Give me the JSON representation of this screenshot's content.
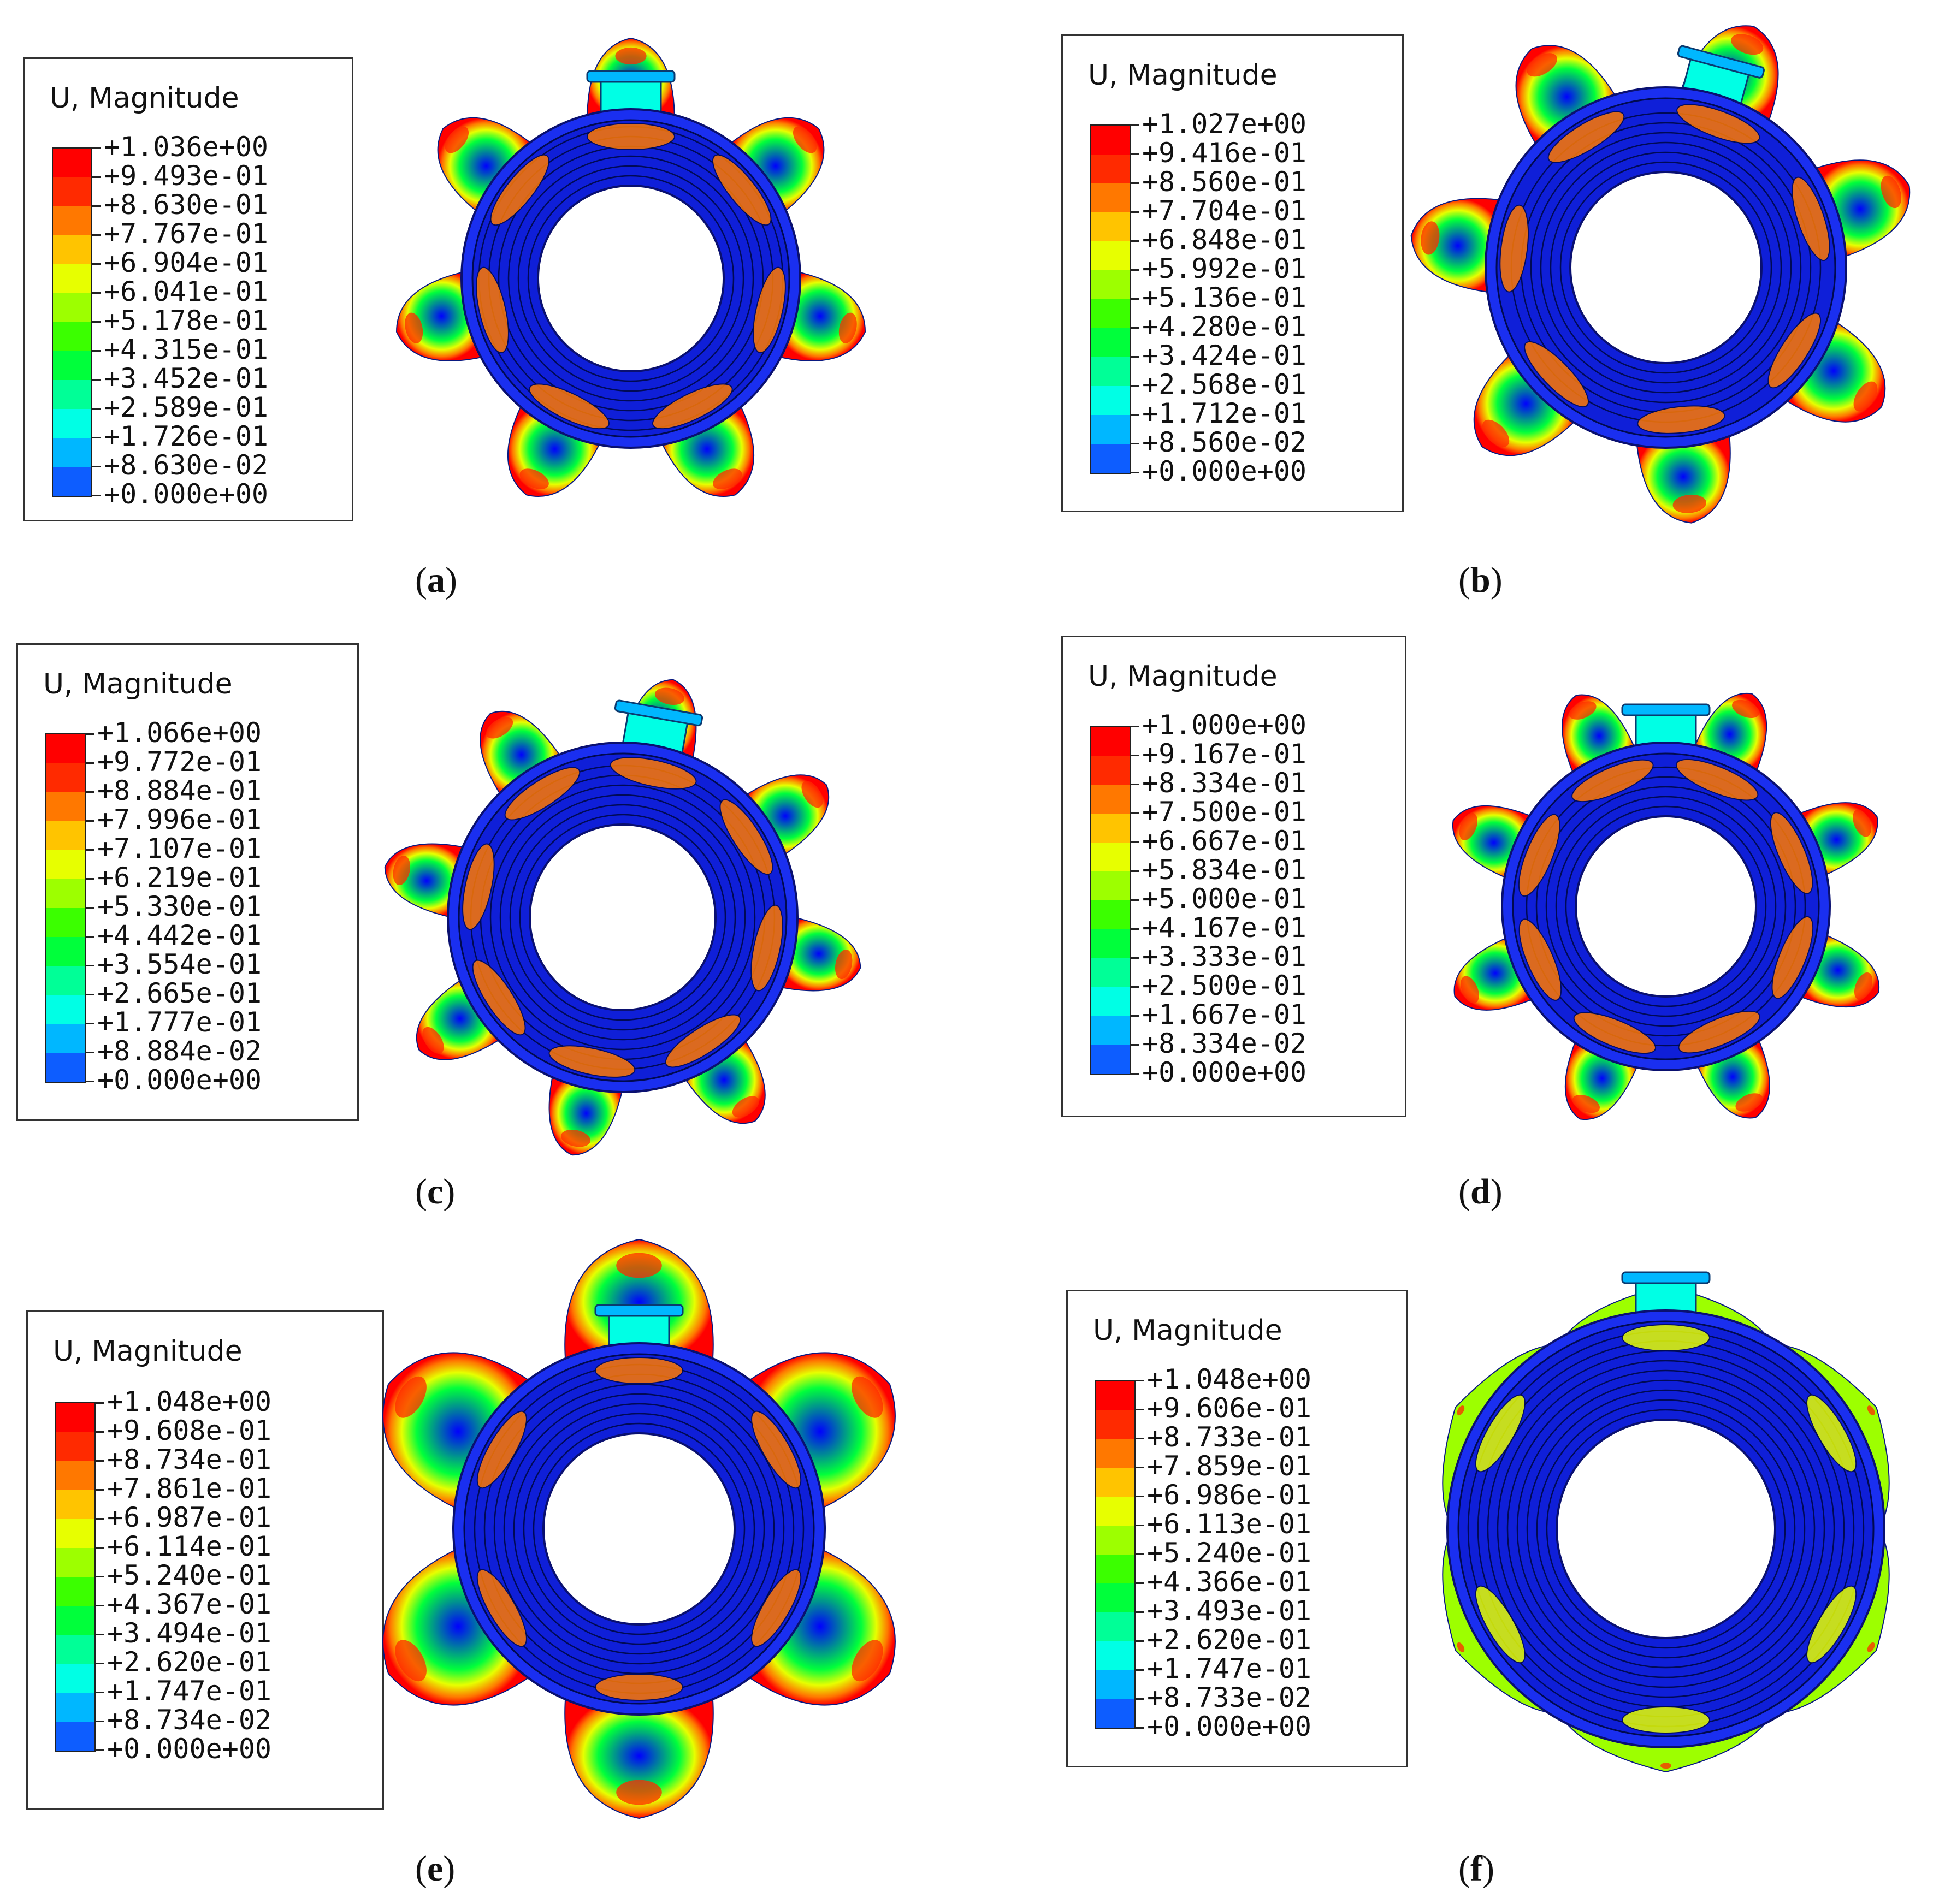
{
  "colors": [
    "#0000ff",
    "#0d5dff",
    "#00b7ff",
    "#00ffe5",
    "#00ff97",
    "#00ff3b",
    "#3bff00",
    "#9dff00",
    "#e7ff00",
    "#ffc400",
    "#ff7800",
    "#ff2a00",
    "#ff0000"
  ],
  "panels": [
    {
      "label_open": "(",
      "label_letter": "a",
      "label_close": ")",
      "legend_title": "U, Magnitude",
      "ticks": [
        "+1.036e+00",
        "+9.493e-01",
        "+8.630e-01",
        "+7.767e-01",
        "+6.904e-01",
        "+6.041e-01",
        "+5.178e-01",
        "+4.315e-01",
        "+3.452e-01",
        "+2.589e-01",
        "+1.726e-01",
        "+8.630e-02",
        "+0.000e+00"
      ],
      "lobes": 7
    },
    {
      "label_open": "(",
      "label_letter": "b",
      "label_close": ")",
      "legend_title": "U, Magnitude",
      "ticks": [
        "+1.027e+00",
        "+9.416e-01",
        "+8.560e-01",
        "+7.704e-01",
        "+6.848e-01",
        "+5.992e-01",
        "+5.136e-01",
        "+4.280e-01",
        "+3.424e-01",
        "+2.568e-01",
        "+1.712e-01",
        "+8.560e-02",
        "+0.000e+00"
      ],
      "lobes": 7
    },
    {
      "label_open": "(",
      "label_letter": "c",
      "label_close": ")",
      "legend_title": "U, Magnitude",
      "ticks": [
        "+1.066e+00",
        "+9.772e-01",
        "+8.884e-01",
        "+7.996e-01",
        "+7.107e-01",
        "+6.219e-01",
        "+5.330e-01",
        "+4.442e-01",
        "+3.554e-01",
        "+2.665e-01",
        "+1.777e-01",
        "+8.884e-02",
        "+0.000e+00"
      ],
      "lobes": 8
    },
    {
      "label_open": "(",
      "label_letter": "d",
      "label_close": ")",
      "legend_title": "U, Magnitude",
      "ticks": [
        "+1.000e+00",
        "+9.167e-01",
        "+8.334e-01",
        "+7.500e-01",
        "+6.667e-01",
        "+5.834e-01",
        "+5.000e-01",
        "+4.167e-01",
        "+3.333e-01",
        "+2.500e-01",
        "+1.667e-01",
        "+8.334e-02",
        "+0.000e+00"
      ],
      "lobes": 8
    },
    {
      "label_open": "(",
      "label_letter": "e",
      "label_close": ")",
      "legend_title": "U, Magnitude",
      "ticks": [
        "+1.048e+00",
        "+9.608e-01",
        "+8.734e-01",
        "+7.861e-01",
        "+6.987e-01",
        "+6.114e-01",
        "+5.240e-01",
        "+4.367e-01",
        "+3.494e-01",
        "+2.620e-01",
        "+1.747e-01",
        "+8.734e-02",
        "+0.000e+00"
      ],
      "lobes": 6
    },
    {
      "label_open": "(",
      "label_letter": "f",
      "label_close": ")",
      "legend_title": "U, Magnitude",
      "ticks": [
        "+1.048e+00",
        "+9.606e-01",
        "+8.733e-01",
        "+7.859e-01",
        "+6.986e-01",
        "+6.113e-01",
        "+5.240e-01",
        "+4.366e-01",
        "+3.493e-01",
        "+2.620e-01",
        "+1.747e-01",
        "+8.733e-02",
        "+0.000e+00"
      ],
      "lobes": 6
    }
  ]
}
